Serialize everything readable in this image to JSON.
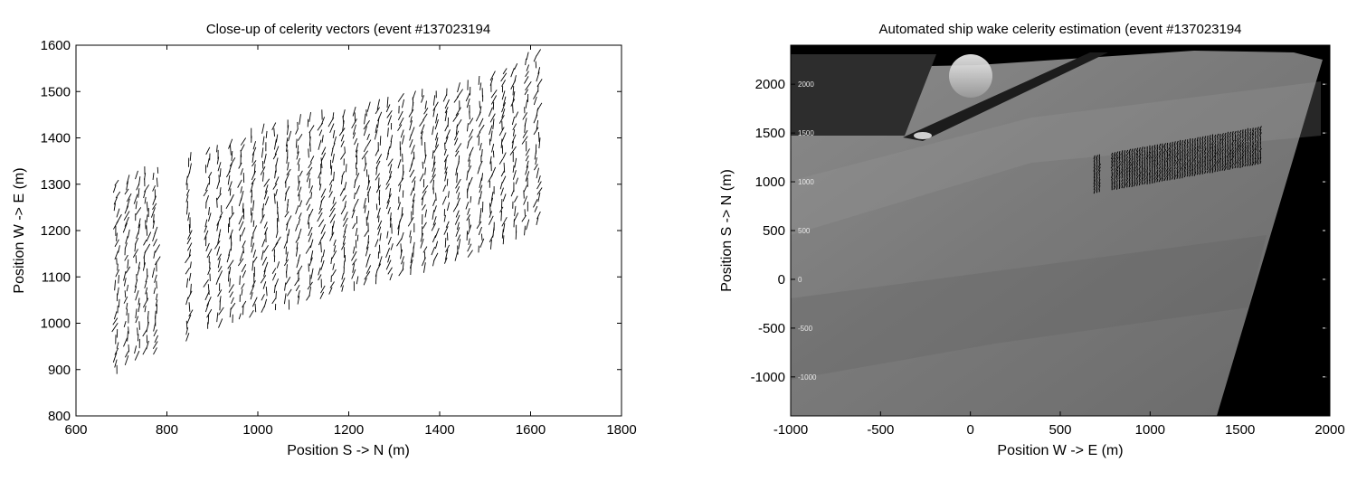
{
  "chart_data": [
    {
      "type": "quiver",
      "title": "Close-up of celerity vectors (event #137023194",
      "xlabel": "Position S -> N (m)",
      "ylabel": "Position W -> E (m)",
      "xlim": [
        600,
        1800
      ],
      "ylim": [
        800,
        1600
      ],
      "xticks": [
        600,
        800,
        1000,
        1200,
        1400,
        1600,
        1800
      ],
      "yticks": [
        800,
        900,
        1000,
        1100,
        1200,
        1300,
        1400,
        1500,
        1600
      ],
      "vector_color": "#000000",
      "vector_columns": [
        {
          "x": 690,
          "y_range": [
            900,
            1310
          ]
        },
        {
          "x": 712,
          "y_range": [
            920,
            1310
          ]
        },
        {
          "x": 735,
          "y_range": [
            930,
            1320
          ]
        },
        {
          "x": 755,
          "y_range": [
            940,
            1330
          ]
        },
        {
          "x": 775,
          "y_range": [
            940,
            1330
          ]
        },
        {
          "x": 848,
          "y_range": [
            970,
            1370
          ]
        },
        {
          "x": 890,
          "y_range": [
            995,
            1380
          ]
        },
        {
          "x": 915,
          "y_range": [
            1000,
            1385
          ]
        },
        {
          "x": 940,
          "y_range": [
            1010,
            1395
          ]
        },
        {
          "x": 965,
          "y_range": [
            1015,
            1400
          ]
        },
        {
          "x": 990,
          "y_range": [
            1020,
            1410
          ]
        },
        {
          "x": 1015,
          "y_range": [
            1030,
            1420
          ]
        },
        {
          "x": 1040,
          "y_range": [
            1035,
            1425
          ]
        },
        {
          "x": 1065,
          "y_range": [
            1040,
            1430
          ]
        },
        {
          "x": 1090,
          "y_range": [
            1050,
            1440
          ]
        },
        {
          "x": 1115,
          "y_range": [
            1055,
            1445
          ]
        },
        {
          "x": 1140,
          "y_range": [
            1060,
            1450
          ]
        },
        {
          "x": 1165,
          "y_range": [
            1070,
            1455
          ]
        },
        {
          "x": 1190,
          "y_range": [
            1075,
            1460
          ]
        },
        {
          "x": 1215,
          "y_range": [
            1080,
            1465
          ]
        },
        {
          "x": 1240,
          "y_range": [
            1090,
            1470
          ]
        },
        {
          "x": 1265,
          "y_range": [
            1095,
            1475
          ]
        },
        {
          "x": 1290,
          "y_range": [
            1100,
            1480
          ]
        },
        {
          "x": 1315,
          "y_range": [
            1110,
            1490
          ]
        },
        {
          "x": 1340,
          "y_range": [
            1115,
            1495
          ]
        },
        {
          "x": 1365,
          "y_range": [
            1120,
            1500
          ]
        },
        {
          "x": 1390,
          "y_range": [
            1130,
            1505
          ]
        },
        {
          "x": 1415,
          "y_range": [
            1135,
            1510
          ]
        },
        {
          "x": 1440,
          "y_range": [
            1145,
            1515
          ]
        },
        {
          "x": 1465,
          "y_range": [
            1150,
            1520
          ]
        },
        {
          "x": 1490,
          "y_range": [
            1160,
            1530
          ]
        },
        {
          "x": 1515,
          "y_range": [
            1170,
            1545
          ]
        },
        {
          "x": 1540,
          "y_range": [
            1180,
            1555
          ]
        },
        {
          "x": 1565,
          "y_range": [
            1190,
            1565
          ]
        },
        {
          "x": 1590,
          "y_range": [
            1200,
            1580
          ]
        },
        {
          "x": 1615,
          "y_range": [
            1220,
            1590
          ]
        }
      ]
    },
    {
      "type": "image-with-vectors",
      "title": "Automated ship wake celerity estimation (event #137023194",
      "xlabel": "Position W -> E (m)",
      "ylabel": "Position S -> N (m)",
      "xlim": [
        -1000,
        2000
      ],
      "ylim": [
        -1400,
        2400
      ],
      "xticks": [
        -1000,
        -500,
        0,
        500,
        1000,
        1500,
        2000
      ],
      "yticks": [
        -1000,
        -500,
        0,
        500,
        1000,
        1500,
        2000
      ],
      "overlay_tick_labels": [
        "2000",
        "1500",
        "1000",
        "500",
        "0",
        "-500",
        "-1000"
      ],
      "vector_color": "#000000",
      "vector_region": {
        "x_range": [
          690,
          1620
        ],
        "y_range": [
          900,
          1590
        ]
      }
    }
  ]
}
